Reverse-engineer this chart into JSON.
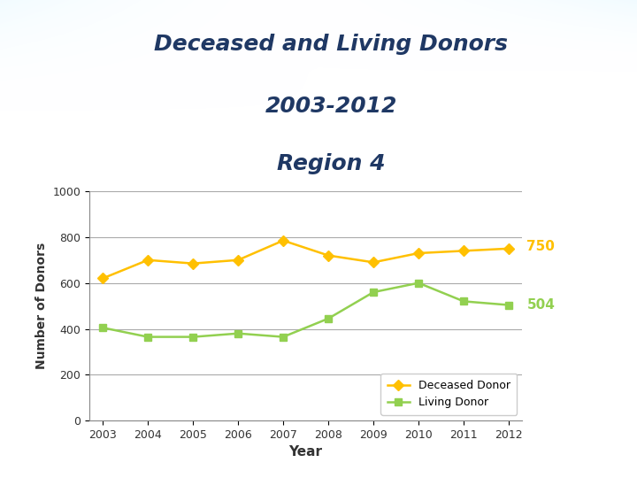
{
  "title_line1": "Deceased and Living Donors",
  "title_line2": "2003-2012",
  "title_line3": "Region 4",
  "xlabel": "Year",
  "ylabel": "Number of Donors",
  "years": [
    2003,
    2004,
    2005,
    2006,
    2007,
    2008,
    2009,
    2010,
    2011,
    2012
  ],
  "deceased_donor": [
    620,
    700,
    685,
    700,
    785,
    720,
    690,
    730,
    740,
    750
  ],
  "living_donor": [
    405,
    365,
    365,
    380,
    365,
    445,
    560,
    600,
    520,
    504
  ],
  "deceased_color": "#FFC000",
  "living_color": "#92D050",
  "ylim": [
    0,
    1000
  ],
  "yticks": [
    0,
    200,
    400,
    600,
    800,
    1000
  ],
  "end_label_deceased": "750",
  "end_label_living": "504",
  "title_color": "#1F3864",
  "axis_color": "#888888",
  "grid_color": "#AAAAAA",
  "legend_deceased": "Deceased Donor",
  "legend_living": "Living Donor",
  "fig_width": 7.2,
  "fig_height": 5.4,
  "dpi": 100
}
